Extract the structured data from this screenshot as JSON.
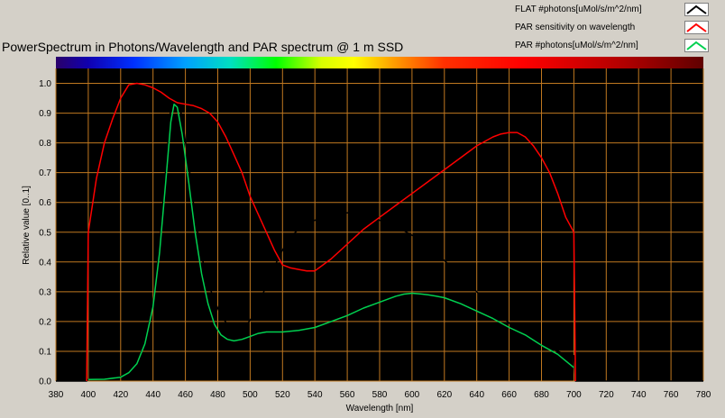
{
  "chart_data": {
    "type": "line",
    "title": "PowerSpectrum in Photons/Wavelength and PAR spectrum @ 1 m SSD",
    "xlabel": "Wavelength [nm]",
    "ylabel": "Relative value [0..1]",
    "xlim": [
      380,
      780
    ],
    "ylim": [
      0,
      1.05
    ],
    "x_ticks": [
      "380",
      "400",
      "420",
      "440",
      "460",
      "480",
      "500",
      "520",
      "540",
      "560",
      "580",
      "600",
      "620",
      "640",
      "660",
      "680",
      "700",
      "720",
      "740",
      "760",
      "780"
    ],
    "y_ticks": [
      "0.0",
      "0.1",
      "0.2",
      "0.3",
      "0.4",
      "0.5",
      "0.6",
      "0.7",
      "0.8",
      "0.9",
      "1.0"
    ],
    "grid": true,
    "plot_background": "#000000",
    "grid_color": "#c07820",
    "legend_position": "top-right",
    "series": [
      {
        "name": "FLAT #photons[uMol/s/m^2/nm]",
        "color": "#000000",
        "points": [
          [
            380,
            0.0
          ],
          [
            399,
            0.0
          ],
          [
            400,
            0.005
          ],
          [
            405,
            0.006
          ],
          [
            410,
            0.008
          ],
          [
            415,
            0.01
          ],
          [
            420,
            0.015
          ],
          [
            425,
            0.03
          ],
          [
            430,
            0.06
          ],
          [
            435,
            0.13
          ],
          [
            440,
            0.26
          ],
          [
            444,
            0.45
          ],
          [
            448,
            0.72
          ],
          [
            451,
            0.92
          ],
          [
            453,
            0.99
          ],
          [
            455,
            0.97
          ],
          [
            458,
            0.88
          ],
          [
            462,
            0.73
          ],
          [
            466,
            0.55
          ],
          [
            470,
            0.42
          ],
          [
            474,
            0.33
          ],
          [
            478,
            0.27
          ],
          [
            482,
            0.22
          ],
          [
            486,
            0.19
          ],
          [
            490,
            0.18
          ],
          [
            494,
            0.18
          ],
          [
            498,
            0.19
          ],
          [
            502,
            0.22
          ],
          [
            506,
            0.27
          ],
          [
            510,
            0.32
          ],
          [
            514,
            0.37
          ],
          [
            518,
            0.42
          ],
          [
            522,
            0.46
          ],
          [
            526,
            0.49
          ],
          [
            530,
            0.51
          ],
          [
            535,
            0.53
          ],
          [
            540,
            0.54
          ],
          [
            545,
            0.55
          ],
          [
            550,
            0.555
          ],
          [
            555,
            0.56
          ],
          [
            560,
            0.565
          ],
          [
            565,
            0.565
          ],
          [
            570,
            0.56
          ],
          [
            575,
            0.55
          ],
          [
            580,
            0.54
          ],
          [
            585,
            0.53
          ],
          [
            590,
            0.52
          ],
          [
            595,
            0.505
          ],
          [
            600,
            0.49
          ],
          [
            605,
            0.475
          ],
          [
            610,
            0.455
          ],
          [
            615,
            0.43
          ],
          [
            620,
            0.405
          ],
          [
            625,
            0.38
          ],
          [
            630,
            0.355
          ],
          [
            635,
            0.33
          ],
          [
            640,
            0.3
          ],
          [
            645,
            0.275
          ],
          [
            650,
            0.245
          ],
          [
            655,
            0.22
          ],
          [
            660,
            0.195
          ],
          [
            665,
            0.17
          ],
          [
            670,
            0.15
          ],
          [
            675,
            0.135
          ],
          [
            680,
            0.12
          ],
          [
            685,
            0.11
          ],
          [
            690,
            0.1
          ],
          [
            695,
            0.09
          ],
          [
            700,
            0.085
          ],
          [
            701,
            0.0
          ],
          [
            780,
            0.0
          ]
        ]
      },
      {
        "name": "PAR sensitivity on wavelength",
        "color": "#ff0000",
        "points": [
          [
            399,
            0.0
          ],
          [
            400,
            0.5
          ],
          [
            405,
            0.68
          ],
          [
            410,
            0.8
          ],
          [
            415,
            0.88
          ],
          [
            420,
            0.95
          ],
          [
            425,
            0.995
          ],
          [
            430,
            1.0
          ],
          [
            435,
            0.995
          ],
          [
            440,
            0.985
          ],
          [
            445,
            0.97
          ],
          [
            450,
            0.95
          ],
          [
            455,
            0.935
          ],
          [
            460,
            0.93
          ],
          [
            465,
            0.925
          ],
          [
            470,
            0.915
          ],
          [
            475,
            0.9
          ],
          [
            480,
            0.87
          ],
          [
            485,
            0.82
          ],
          [
            490,
            0.76
          ],
          [
            495,
            0.7
          ],
          [
            500,
            0.62
          ],
          [
            505,
            0.56
          ],
          [
            510,
            0.5
          ],
          [
            515,
            0.44
          ],
          [
            520,
            0.39
          ],
          [
            525,
            0.38
          ],
          [
            530,
            0.375
          ],
          [
            535,
            0.37
          ],
          [
            540,
            0.37
          ],
          [
            550,
            0.41
          ],
          [
            560,
            0.46
          ],
          [
            570,
            0.51
          ],
          [
            580,
            0.55
          ],
          [
            590,
            0.59
          ],
          [
            600,
            0.63
          ],
          [
            610,
            0.67
          ],
          [
            620,
            0.71
          ],
          [
            630,
            0.75
          ],
          [
            640,
            0.79
          ],
          [
            650,
            0.82
          ],
          [
            655,
            0.83
          ],
          [
            660,
            0.835
          ],
          [
            665,
            0.835
          ],
          [
            670,
            0.82
          ],
          [
            675,
            0.79
          ],
          [
            680,
            0.75
          ],
          [
            685,
            0.7
          ],
          [
            690,
            0.63
          ],
          [
            695,
            0.55
          ],
          [
            700,
            0.5
          ],
          [
            701,
            0.0
          ]
        ]
      },
      {
        "name": "PAR #photons[uMol/s/m^2/nm]",
        "color": "#00d050",
        "points": [
          [
            400,
            0.005
          ],
          [
            410,
            0.006
          ],
          [
            420,
            0.013
          ],
          [
            425,
            0.028
          ],
          [
            430,
            0.058
          ],
          [
            435,
            0.125
          ],
          [
            440,
            0.25
          ],
          [
            444,
            0.43
          ],
          [
            448,
            0.68
          ],
          [
            451,
            0.87
          ],
          [
            453,
            0.93
          ],
          [
            455,
            0.92
          ],
          [
            458,
            0.83
          ],
          [
            462,
            0.67
          ],
          [
            466,
            0.5
          ],
          [
            470,
            0.36
          ],
          [
            474,
            0.26
          ],
          [
            478,
            0.19
          ],
          [
            482,
            0.155
          ],
          [
            486,
            0.14
          ],
          [
            490,
            0.135
          ],
          [
            495,
            0.14
          ],
          [
            500,
            0.15
          ],
          [
            505,
            0.16
          ],
          [
            510,
            0.165
          ],
          [
            520,
            0.165
          ],
          [
            530,
            0.17
          ],
          [
            540,
            0.18
          ],
          [
            550,
            0.2
          ],
          [
            560,
            0.22
          ],
          [
            570,
            0.245
          ],
          [
            580,
            0.265
          ],
          [
            590,
            0.285
          ],
          [
            595,
            0.292
          ],
          [
            600,
            0.295
          ],
          [
            605,
            0.293
          ],
          [
            610,
            0.29
          ],
          [
            615,
            0.285
          ],
          [
            620,
            0.28
          ],
          [
            630,
            0.26
          ],
          [
            640,
            0.235
          ],
          [
            650,
            0.21
          ],
          [
            660,
            0.18
          ],
          [
            670,
            0.155
          ],
          [
            680,
            0.12
          ],
          [
            690,
            0.09
          ],
          [
            700,
            0.045
          ]
        ]
      }
    ]
  }
}
